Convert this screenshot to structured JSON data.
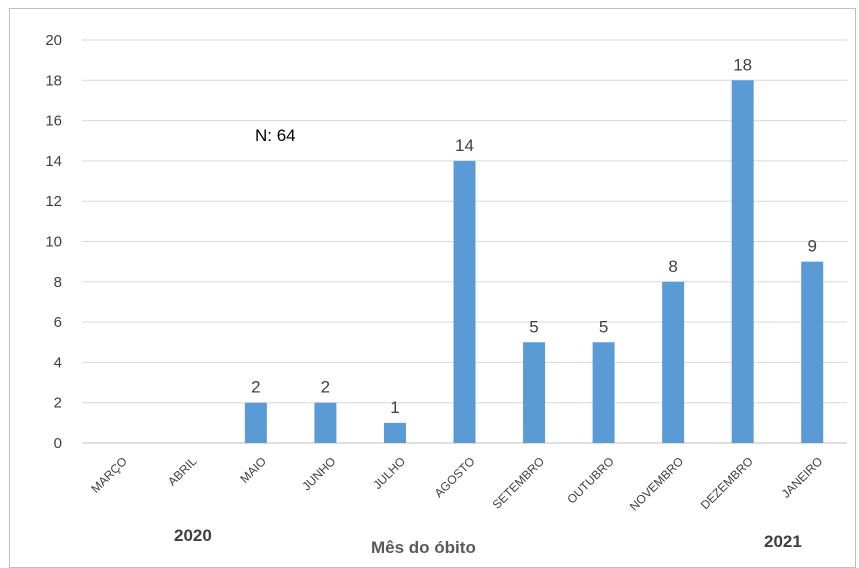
{
  "chart_data": {
    "type": "bar",
    "categories": [
      "MARÇO",
      "ABRIL",
      "MAIO",
      "JUNHO",
      "JULHO",
      "AGOSTO",
      "SETEMBRO",
      "OUTUBRO",
      "NOVEMBRO",
      "DEZEMBRO",
      "JANEIRO"
    ],
    "values": [
      0,
      0,
      2,
      2,
      1,
      14,
      5,
      5,
      8,
      18,
      9
    ],
    "data_labels": [
      "",
      "",
      "2",
      "2",
      "1",
      "14",
      "5",
      "5",
      "8",
      "18",
      "9"
    ],
    "xlabel": "Mês do óbito",
    "ylabel": "",
    "ylim": [
      0,
      20
    ],
    "yticks": [
      0,
      2,
      4,
      6,
      8,
      10,
      12,
      14,
      16,
      18,
      20
    ],
    "grid": true,
    "bar_color": "#5b9bd5",
    "annotation": "N: 64",
    "year_labels": {
      "start": "2020",
      "end": "2021"
    }
  }
}
